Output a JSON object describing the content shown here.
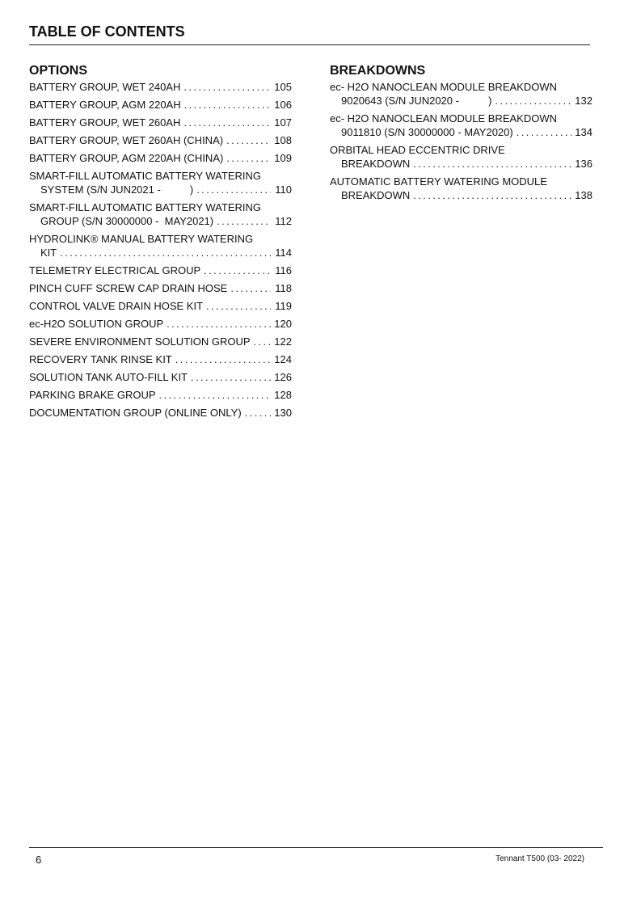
{
  "title": "TABLE OF CONTENTS",
  "options": {
    "heading": "OPTIONS",
    "entries": [
      {
        "lines": [
          "BATTERY GROUP, WET 240AH"
        ],
        "page": "105"
      },
      {
        "lines": [
          "BATTERY GROUP, AGM 220AH"
        ],
        "page": "106"
      },
      {
        "lines": [
          "BATTERY GROUP, WET 260AH"
        ],
        "page": "107"
      },
      {
        "lines": [
          "BATTERY GROUP, WET 260AH (CHINA)"
        ],
        "page": "108"
      },
      {
        "lines": [
          "BATTERY GROUP, AGM 220AH (CHINA)"
        ],
        "page": "109"
      },
      {
        "lines": [
          "SMART-FILL AUTOMATIC BATTERY WATERING",
          "SYSTEM (S/N JUN2021 -          )"
        ],
        "page": "110"
      },
      {
        "lines": [
          "SMART-FILL AUTOMATIC BATTERY WATERING",
          "GROUP (S/N 30000000 -  MAY2021)"
        ],
        "page": "112"
      },
      {
        "lines": [
          "HYDROLINK® MANUAL BATTERY WATERING",
          "KIT"
        ],
        "page": "114"
      },
      {
        "lines": [
          "TELEMETRY ELECTRICAL GROUP"
        ],
        "page": "116"
      },
      {
        "lines": [
          "PINCH CUFF SCREW CAP DRAIN HOSE"
        ],
        "page": "118"
      },
      {
        "lines": [
          "CONTROL VALVE DRAIN HOSE KIT"
        ],
        "page": "119"
      },
      {
        "lines": [
          "ec-H2O SOLUTION GROUP"
        ],
        "page": "120"
      },
      {
        "lines": [
          "SEVERE ENVIRONMENT SOLUTION GROUP"
        ],
        "page": "122"
      },
      {
        "lines": [
          "RECOVERY TANK RINSE KIT"
        ],
        "page": "124"
      },
      {
        "lines": [
          "SOLUTION TANK AUTO-FILL KIT"
        ],
        "page": "126"
      },
      {
        "lines": [
          "PARKING BRAKE GROUP"
        ],
        "page": "128"
      },
      {
        "lines": [
          "DOCUMENTATION GROUP (ONLINE ONLY)"
        ],
        "page": "130"
      }
    ]
  },
  "breakdowns": {
    "heading": "BREAKDOWNS",
    "entries": [
      {
        "lines": [
          "ec- H2O NANOCLEAN MODULE BREAKDOWN",
          "9020643 (S/N JUN2020 -          )"
        ],
        "page": "132"
      },
      {
        "lines": [
          "ec- H2O NANOCLEAN MODULE BREAKDOWN",
          "9011810 (S/N 30000000 - MAY2020)"
        ],
        "page": "134"
      },
      {
        "lines": [
          "ORBITAL HEAD ECCENTRIC DRIVE",
          "BREAKDOWN"
        ],
        "page": "136"
      },
      {
        "lines": [
          "AUTOMATIC BATTERY WATERING MODULE",
          "BREAKDOWN"
        ],
        "page": "138"
      }
    ]
  },
  "footer": {
    "page_number": "6",
    "document": "Tennant T500  (03- 2022)"
  }
}
